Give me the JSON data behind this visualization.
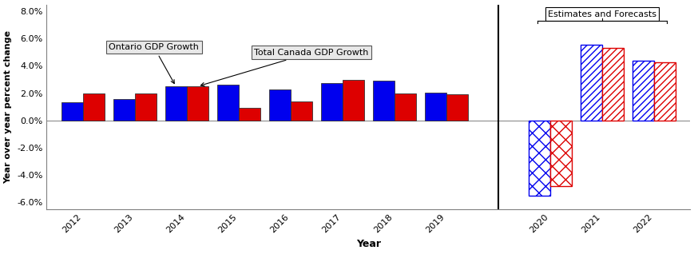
{
  "years_historical": [
    "2012",
    "2013",
    "2014",
    "2015",
    "2016",
    "2017",
    "2018",
    "2019"
  ],
  "years_forecast": [
    "2020",
    "2021",
    "2022"
  ],
  "ontario_historical": [
    1.35,
    1.55,
    2.5,
    2.65,
    2.25,
    2.75,
    2.9,
    2.05
  ],
  "canada_historical": [
    1.95,
    2.0,
    2.5,
    0.95,
    1.4,
    3.0,
    2.0,
    1.9
  ],
  "ontario_forecast": [
    -5.5,
    5.55,
    4.4
  ],
  "canada_forecast": [
    -4.8,
    5.3,
    4.25
  ],
  "bar_width": 0.42,
  "ontario_color": "#0000EE",
  "canada_color": "#DD0000",
  "ylabel": "Year over year percent change",
  "xlabel": "Year",
  "ylim": [
    -6.5,
    8.5
  ],
  "yticks": [
    -6.0,
    -4.0,
    -2.0,
    0.0,
    2.0,
    4.0,
    6.0,
    8.0
  ],
  "background_color": "#ffffff",
  "annotation_ontario": "Ontario GDP Growth",
  "annotation_canada": "Total Canada GDP Growth",
  "annotation_forecast": "Estimates and Forecasts",
  "sep_ratio": 0.72
}
